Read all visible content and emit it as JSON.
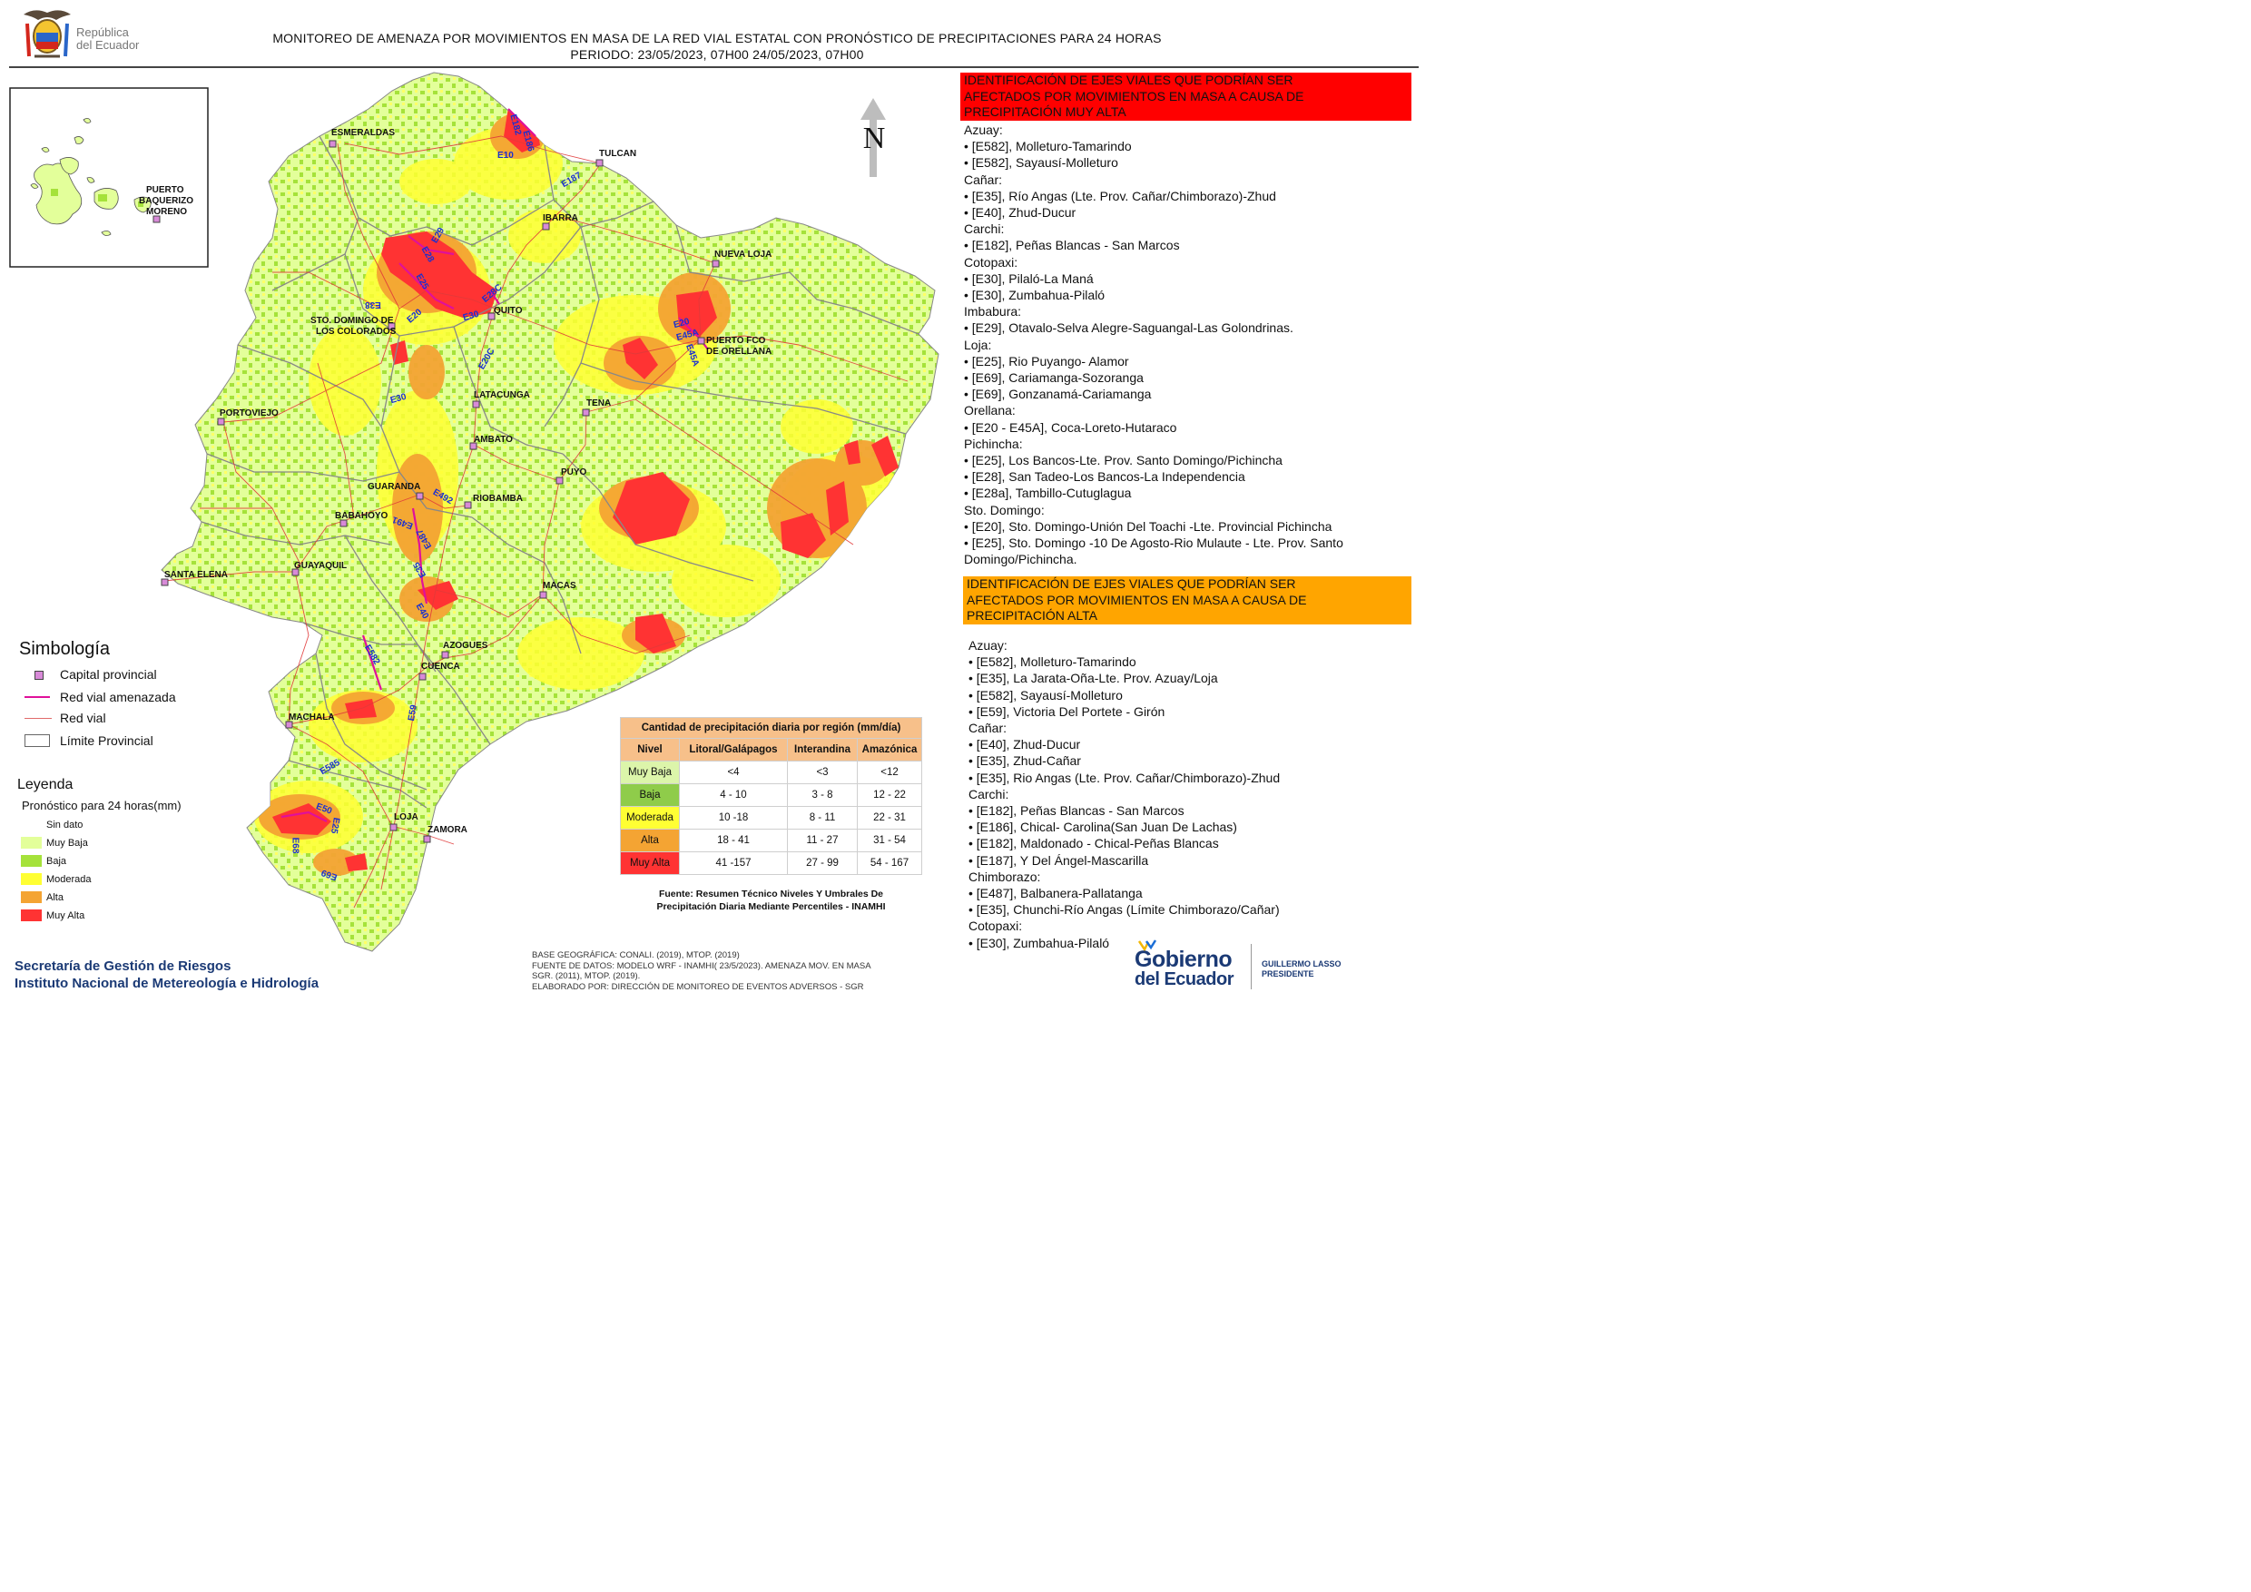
{
  "header": {
    "brand_line1": "República",
    "brand_line2": "del Ecuador",
    "title": "MONITOREO DE AMENAZA POR MOVIMIENTOS EN MASA DE LA RED VIAL  ESTATAL  CON PRONÓSTICO  DE  PRECIPITACIONES PARA 24 HORAS",
    "period": "PERIODO: 23/05/2023, 07H00 24/05/2023, 07H00"
  },
  "inset": {
    "city": [
      "PUERTO",
      "BAQUERIZO",
      "MORENO"
    ]
  },
  "north_label": "N",
  "cities": [
    {
      "key": "esmeraldas",
      "label": "ESMERALDAS"
    },
    {
      "key": "tulcan",
      "label": "TULCAN"
    },
    {
      "key": "ibarra",
      "label": "IBARRA"
    },
    {
      "key": "nueva_loja",
      "label": "NUEVA LOJA"
    },
    {
      "key": "quito",
      "label": "QUITO"
    },
    {
      "key": "sto_domingo_1",
      "label": "STO. DOMINGO DE"
    },
    {
      "key": "sto_domingo_2",
      "label": "LOS COLORADOS"
    },
    {
      "key": "orellana_1",
      "label": "PUERTO FCO"
    },
    {
      "key": "orellana_2",
      "label": "DE ORELLANA"
    },
    {
      "key": "portoviejo",
      "label": "PORTOVIEJO"
    },
    {
      "key": "latacunga",
      "label": "LATACUNGA"
    },
    {
      "key": "tena",
      "label": "TENA"
    },
    {
      "key": "ambato",
      "label": "AMBATO"
    },
    {
      "key": "puyo",
      "label": "PUYO"
    },
    {
      "key": "guaranda",
      "label": "GUARANDA"
    },
    {
      "key": "riobamba",
      "label": "RIOBAMBA"
    },
    {
      "key": "babahoyo",
      "label": "BABAHOYO"
    },
    {
      "key": "guayaquil",
      "label": "GUAYAQUIL"
    },
    {
      "key": "santa_elena",
      "label": "SANTA ELENA"
    },
    {
      "key": "macas",
      "label": "MACAS"
    },
    {
      "key": "azogues",
      "label": "AZOGUES"
    },
    {
      "key": "cuenca",
      "label": "CUENCA"
    },
    {
      "key": "machala",
      "label": "MACHALA"
    },
    {
      "key": "loja",
      "label": "LOJA"
    },
    {
      "key": "zamora",
      "label": "ZAMORA"
    }
  ],
  "routes": [
    {
      "key": "e182",
      "label": "E182"
    },
    {
      "key": "e186",
      "label": "E186"
    },
    {
      "key": "e10",
      "label": "E10"
    },
    {
      "key": "e187",
      "label": "E187"
    },
    {
      "key": "e29",
      "label": "E29"
    },
    {
      "key": "e28",
      "label": "E28"
    },
    {
      "key": "e25",
      "label": "E25"
    },
    {
      "key": "e38",
      "label": "E38"
    },
    {
      "key": "e28c",
      "label": "E28C"
    },
    {
      "key": "e20a",
      "label": "E20"
    },
    {
      "key": "e30a",
      "label": "E30"
    },
    {
      "key": "e20c",
      "label": "E20C"
    },
    {
      "key": "e30b",
      "label": "E30"
    },
    {
      "key": "e20b",
      "label": "E20"
    },
    {
      "key": "e45a1",
      "label": "E45A"
    },
    {
      "key": "e45a2",
      "label": "E45A"
    },
    {
      "key": "e492",
      "label": "E492"
    },
    {
      "key": "e491",
      "label": "E491"
    },
    {
      "key": "e487",
      "label": "E487"
    },
    {
      "key": "e35",
      "label": "E35"
    },
    {
      "key": "e40",
      "label": "E40"
    },
    {
      "key": "e582",
      "label": "E582"
    },
    {
      "key": "e59",
      "label": "E59"
    },
    {
      "key": "e585",
      "label": "E585"
    },
    {
      "key": "e50",
      "label": "E50"
    },
    {
      "key": "e25b",
      "label": "E25"
    },
    {
      "key": "e68",
      "label": "E68"
    },
    {
      "key": "e69",
      "label": "E69"
    }
  ],
  "red_panel": {
    "header": [
      "IDENTIFICACIÓN DE EJES VIALES QUE PODRÍAN SER",
      "AFECTADOS POR MOVIMIENTOS EN MASA A CAUSA DE",
      "PRECIPITACIÓN MUY ALTA"
    ],
    "lines": [
      "Azuay:",
      "• [E582], Molleturo-Tamarindo",
      "• [E582], Sayausí-Molleturo",
      "Cañar:",
      "• [E35], Río Angas (Lte. Prov. Cañar/Chimborazo)-Zhud",
      "• [E40], Zhud-Ducur",
      "Carchi:",
      "• [E182], Peñas Blancas - San Marcos",
      "Cotopaxi:",
      "• [E30], Pilaló-La Maná",
      "• [E30], Zumbahua-Pilaló",
      "Imbabura:",
      "• [E29], Otavalo-Selva Alegre-Saguangal-Las Golondrinas.",
      "Loja:",
      "• [E25], Rio Puyango- Alamor",
      "• [E69], Cariamanga-Sozoranga",
      "• [E69], Gonzanamá-Cariamanga",
      "Orellana:",
      "• [E20 - E45A], Coca-Loreto-Hutaraco",
      "Pichincha:",
      "• [E25], Los Bancos-Lte. Prov. Santo Domingo/Pichincha",
      "• [E28], San Tadeo-Los Bancos-La Independencia",
      "• [E28a], Tambillo-Cutuglagua",
      "Sto. Domingo:",
      "• [E20], Sto. Domingo-Unión Del Toachi -Lte. Provincial Pichincha",
      "• [E25], Sto. Domingo -10 De Agosto-Rio Mulaute - Lte. Prov. Santo",
      "Domingo/Pichincha."
    ]
  },
  "orange_panel": {
    "header": [
      "IDENTIFICACIÓN DE EJES VIALES QUE PODRÍAN SER",
      "AFECTADOS POR MOVIMIENTOS EN MASA A CAUSA DE",
      "PRECIPITACIÓN  ALTA"
    ],
    "lines": [
      "Azuay:",
      "• [E582], Molleturo-Tamarindo",
      "• [E35], La Jarata-Oña-Lte. Prov. Azuay/Loja",
      "• [E582], Sayausí-Molleturo",
      "• [E59], Victoria Del Portete - Girón",
      "Cañar:",
      "• [E40], Zhud-Ducur",
      "• [E35], Zhud-Cañar",
      "• [E35], Rio Angas (Lte. Prov. Cañar/Chimborazo)-Zhud",
      "Carchi:",
      "• [E182], Peñas Blancas - San Marcos",
      "• [E186], Chical- Carolina(San Juan De Lachas)",
      "• [E182], Maldonado - Chical-Peñas Blancas",
      "• [E187], Y Del Ángel-Mascarilla",
      "Chimborazo:",
      "• [E487], Balbanera-Pallatanga",
      "• [E35], Chunchi-Río Angas (Límite Chimborazo/Cañar)",
      "Cotopaxi:",
      "• [E30], Zumbahua-Pilaló"
    ]
  },
  "symbology": {
    "title": "Simbología",
    "items": [
      "Capital provincial",
      "Red vial amenazada",
      "Red vial",
      "Límite Provincial"
    ]
  },
  "legend": {
    "title": "Leyenda",
    "subtitle": "Pronóstico para 24 horas(mm)",
    "items": [
      {
        "label": "Sin dato",
        "color": "#ffffff"
      },
      {
        "label": "Muy Baja",
        "color": "#e3ff9a"
      },
      {
        "label": "Baja",
        "color": "#a5e23a"
      },
      {
        "label": "Moderada",
        "color": "#ffff33"
      },
      {
        "label": "Alta",
        "color": "#f4a433"
      },
      {
        "label": "Muy Alta",
        "color": "#ff3333"
      }
    ]
  },
  "precip_table": {
    "title": "Cantidad de precipitación diaria por región (mm/día)",
    "headers": [
      "Nivel",
      "Litoral/Galápagos",
      "Interandina",
      "Amazónica"
    ],
    "rows": [
      {
        "level": "Muy Baja",
        "litoral": "<4",
        "interandina": "<3",
        "amazonica": "<12",
        "color": "#dcf5aa"
      },
      {
        "level": "Baja",
        "litoral": "4 - 10",
        "interandina": "3 - 8",
        "amazonica": "12 - 22",
        "color": "#8fcc4a"
      },
      {
        "level": "Moderada",
        "litoral": "10 -18",
        "interandina": "8 - 11",
        "amazonica": "22 - 31",
        "color": "#ffff33"
      },
      {
        "level": "Alta",
        "litoral": "18 - 41",
        "interandina": "11 - 27",
        "amazonica": "31 - 54",
        "color": "#f4a433"
      },
      {
        "level": "Muy Alta",
        "litoral": "41 -157",
        "interandina": "27 - 99",
        "amazonica": "54 - 167",
        "color": "#ff3333"
      }
    ],
    "source": [
      "Fuente: Resumen Técnico Niveles Y Umbrales De",
      "Precipitación Diaria Mediante Percentiles - INAMHI"
    ]
  },
  "footer": {
    "org1": "Secretaría de Gestión de Riesgos",
    "org2": "Instituto Nacional de Metereología e Hidrología",
    "notes": [
      "BASE GEOGRÁFICA: CONALI. (2019), MTOP. (2019)",
      "FUENTE DE DATOS: MODELO WRF - INAMHI( 23/5/2023).  AMENAZA MOV. EN MASA",
      "SGR. (2011), MTOP. (2019).",
      "ELABORADO POR: DIRECCIÓN DE MONITOREO DE EVENTOS ADVERSOS - SGR"
    ],
    "gob1": "Gobierno",
    "gob2": "del Ecuador",
    "pres_name": "GUILLERMO LASSO",
    "pres_title": "PRESIDENTE"
  },
  "colors": {
    "muy_baja": "#e3ff9a",
    "baja": "#a5e23a",
    "moderada": "#ffff33",
    "alta": "#f4a433",
    "muy_alta": "#ff3333",
    "red_header": "#ff0000",
    "orange_header": "#ffa500",
    "threatened_road": "#e0109a",
    "road": "#e03a3a",
    "capital": "#c23fbf",
    "route_label": "#1a2fd0",
    "footer_blue": "#1b3a75"
  }
}
